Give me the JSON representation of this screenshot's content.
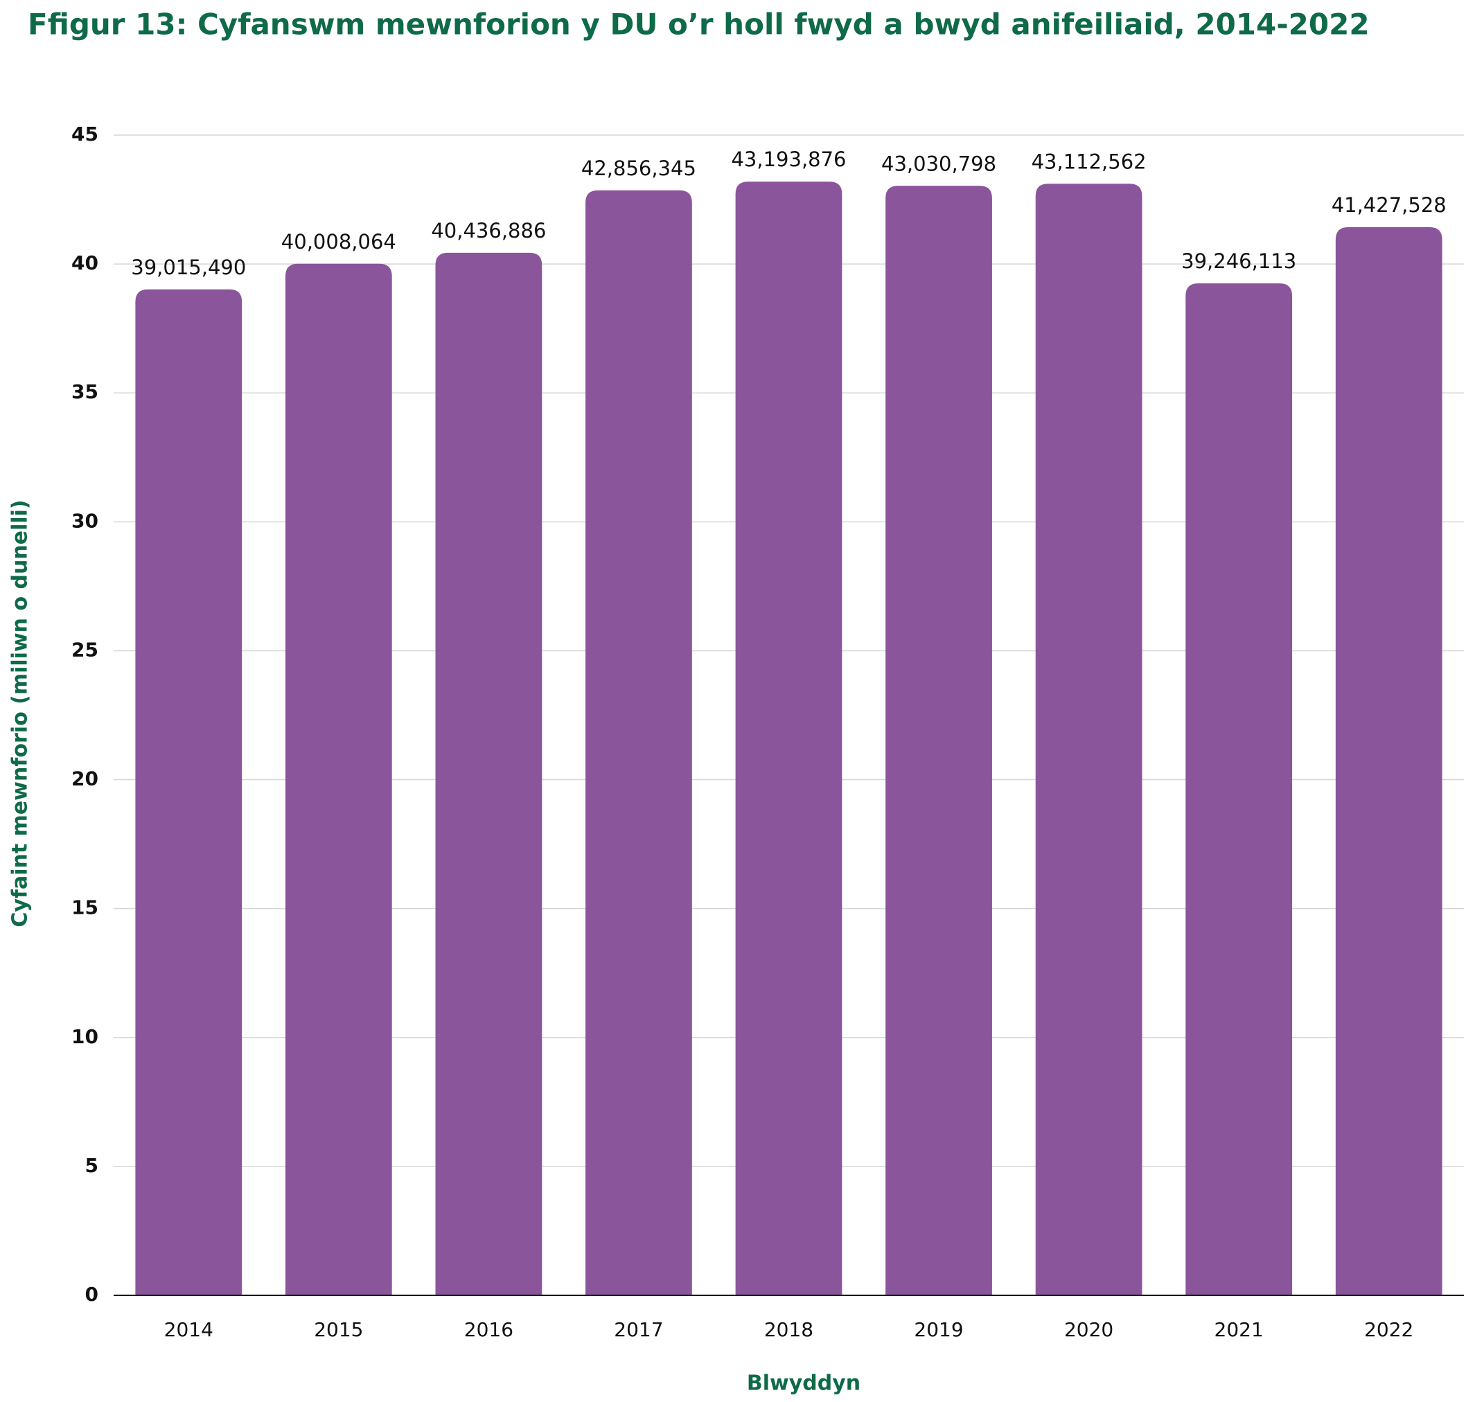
{
  "chart_data": {
    "type": "bar",
    "title": "Ffigur 13: Cyfanswm mewnforion y DU o’r holl fwyd a bwyd anifeiliaid, 2014-2022",
    "x_label": "Blwyddyn",
    "y_label": "Cyfaint mewnforio (miliwn o dunelli)",
    "categories": [
      "2014",
      "2015",
      "2016",
      "2017",
      "2018",
      "2019",
      "2020",
      "2021",
      "2022"
    ],
    "values": [
      39.01549,
      40.008064,
      40.436886,
      42.856345,
      43.193876,
      43.030798,
      43.112562,
      39.246113,
      41.427528
    ],
    "value_labels": [
      "39,015,490",
      "40,008,064",
      "40,436,886",
      "42,856,345",
      "43,193,876",
      "43,030,798",
      "43,112,562",
      "39,246,113",
      "41,427,528"
    ],
    "color": "#8b559b",
    "ylim": [
      0,
      45
    ],
    "yticks": [
      0,
      5,
      10,
      15,
      20,
      25,
      30,
      35,
      40,
      45
    ],
    "grid": true
  }
}
